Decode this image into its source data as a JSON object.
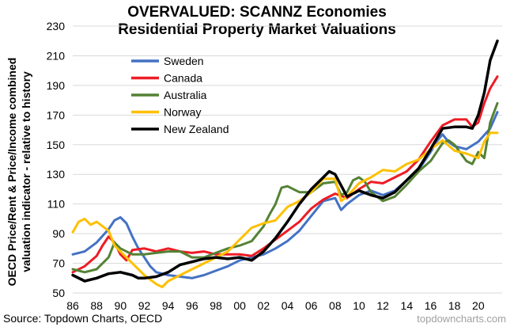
{
  "title_line1": "OVERVALUED: SCANNZ Economies",
  "title_line2": "Residential Property Market Valuations",
  "source": "Source: Topdown Charts, OECD",
  "watermark": "topdowncharts.com",
  "chart_data": {
    "type": "line",
    "title": "OVERVALUED: SCANNZ Economies Residential Property Market Valuations",
    "ylabel_line1": "OECD Price/Rent & Price/Income combined",
    "ylabel_line2": "valuation indicator - relative to history",
    "xlabel": "",
    "xlim": [
      1986,
      2022
    ],
    "ylim": [
      50,
      230
    ],
    "yticks": [
      50,
      70,
      90,
      110,
      130,
      150,
      170,
      190,
      210,
      230
    ],
    "xticks": [
      1986,
      1988,
      1990,
      1992,
      1994,
      1996,
      1998,
      2000,
      2002,
      2004,
      2006,
      2008,
      2010,
      2012,
      2014,
      2016,
      2018,
      2020
    ],
    "xtick_labels": [
      "86",
      "88",
      "90",
      "92",
      "94",
      "96",
      "98",
      "00",
      "02",
      "04",
      "06",
      "08",
      "10",
      "12",
      "14",
      "16",
      "18",
      "20"
    ],
    "grid": "horizontal",
    "legend_position": "top-left",
    "series": [
      {
        "name": "Sweden",
        "color": "#4472c4",
        "x": [
          1986,
          1987,
          1988,
          1989,
          1989.5,
          1990,
          1990.5,
          1991,
          1991.5,
          1992,
          1992.5,
          1993,
          1994,
          1995,
          1996,
          1997,
          1998,
          1999,
          2000,
          2001,
          2002,
          2003,
          2004,
          2005,
          2006,
          2007,
          2008,
          2008.5,
          2009,
          2010,
          2011,
          2012,
          2013,
          2014,
          2015,
          2016,
          2016.5,
          2017,
          2017.5,
          2018,
          2019,
          2020,
          2021,
          2021.6
        ],
        "y": [
          76,
          78,
          84,
          93,
          99,
          101,
          97,
          88,
          80,
          74,
          68,
          64,
          62,
          61,
          60,
          62,
          65,
          68,
          72,
          74,
          76,
          80,
          85,
          92,
          102,
          112,
          114,
          106,
          110,
          116,
          119,
          116,
          119,
          126,
          133,
          145,
          152,
          157,
          152,
          149,
          147,
          152,
          161,
          172
        ]
      },
      {
        "name": "Canada",
        "color": "#ee1c25",
        "x": [
          1986,
          1987,
          1988,
          1988.5,
          1989,
          1989.5,
          1990,
          1990.5,
          1991,
          1992,
          1993,
          1994,
          1995,
          1996,
          1997,
          1998,
          1999,
          2000,
          2001,
          2002,
          2003,
          2004,
          2005,
          2006,
          2007,
          2008,
          2009,
          2010,
          2011,
          2012,
          2013,
          2014,
          2015,
          2016,
          2017,
          2018,
          2019,
          2019.5,
          2020,
          2020.5,
          2021,
          2021.6
        ],
        "y": [
          64,
          68,
          75,
          82,
          88,
          84,
          76,
          72,
          79,
          80,
          78,
          80,
          78,
          77,
          78,
          76,
          76,
          76,
          75,
          80,
          86,
          92,
          98,
          107,
          113,
          117,
          114,
          120,
          125,
          124,
          128,
          132,
          140,
          152,
          163,
          167,
          167,
          162,
          165,
          178,
          188,
          196
        ]
      },
      {
        "name": "Australia",
        "color": "#548235",
        "x": [
          1986,
          1987,
          1988,
          1989,
          1989.5,
          1990,
          1991,
          1992,
          1993,
          1994,
          1995,
          1996,
          1997,
          1998,
          1999,
          2000,
          2001,
          2002,
          2002.5,
          2003,
          2003.5,
          2004,
          2005,
          2006,
          2007,
          2008,
          2008.5,
          2009,
          2009.5,
          2010,
          2010.5,
          2011,
          2012,
          2013,
          2014,
          2015,
          2016,
          2017,
          2017.5,
          2018,
          2019,
          2019.5,
          2020,
          2020.5,
          2021,
          2021.6
        ],
        "y": [
          66,
          64,
          66,
          74,
          84,
          80,
          76,
          76,
          77,
          78,
          78,
          74,
          74,
          77,
          80,
          82,
          85,
          95,
          103,
          110,
          121,
          122,
          118,
          118,
          124,
          125,
          116,
          118,
          126,
          128,
          125,
          118,
          112,
          115,
          123,
          132,
          139,
          151,
          153,
          150,
          139,
          137,
          145,
          141,
          165,
          178
        ]
      },
      {
        "name": "Norway",
        "color": "#ffc000",
        "x": [
          1986,
          1986.5,
          1987,
          1987.5,
          1988,
          1989,
          1989.5,
          1990,
          1991,
          1992,
          1993,
          1993.5,
          1994,
          1995,
          1996,
          1997,
          1998,
          1999,
          2000,
          2001,
          2002,
          2003,
          2004,
          2005,
          2006,
          2007,
          2008,
          2008.5,
          2009,
          2010,
          2011,
          2012,
          2013,
          2014,
          2015,
          2016,
          2017,
          2018,
          2019,
          2020,
          2020.5,
          2021,
          2021.6
        ],
        "y": [
          91,
          98,
          100,
          96,
          98,
          92,
          82,
          78,
          70,
          62,
          56,
          54,
          58,
          62,
          66,
          70,
          74,
          78,
          86,
          94,
          97,
          99,
          108,
          112,
          118,
          127,
          127,
          112,
          115,
          124,
          128,
          133,
          132,
          137,
          140,
          147,
          153,
          146,
          144,
          141,
          152,
          158,
          158
        ]
      },
      {
        "name": "New Zealand",
        "color": "#000000",
        "x": [
          1986,
          1987,
          1988,
          1989,
          1990,
          1991,
          1991.5,
          1992,
          1993,
          1994,
          1995,
          1996,
          1997,
          1998,
          1999,
          2000,
          2001,
          2002,
          2003,
          2004,
          2005,
          2006,
          2007,
          2007.5,
          2008,
          2009,
          2009.5,
          2010,
          2011,
          2012,
          2013,
          2014,
          2015,
          2016,
          2017,
          2018,
          2019,
          2019.5,
          2020,
          2020.5,
          2021,
          2021.6
        ],
        "y": [
          62,
          58,
          60,
          63,
          64,
          62,
          60,
          60,
          61,
          64,
          69,
          71,
          73,
          74,
          73,
          74,
          72,
          78,
          87,
          98,
          110,
          120,
          128,
          132,
          130,
          115,
          117,
          119,
          116,
          114,
          118,
          126,
          134,
          147,
          161,
          162,
          162,
          161,
          170,
          185,
          207,
          220
        ]
      }
    ]
  }
}
